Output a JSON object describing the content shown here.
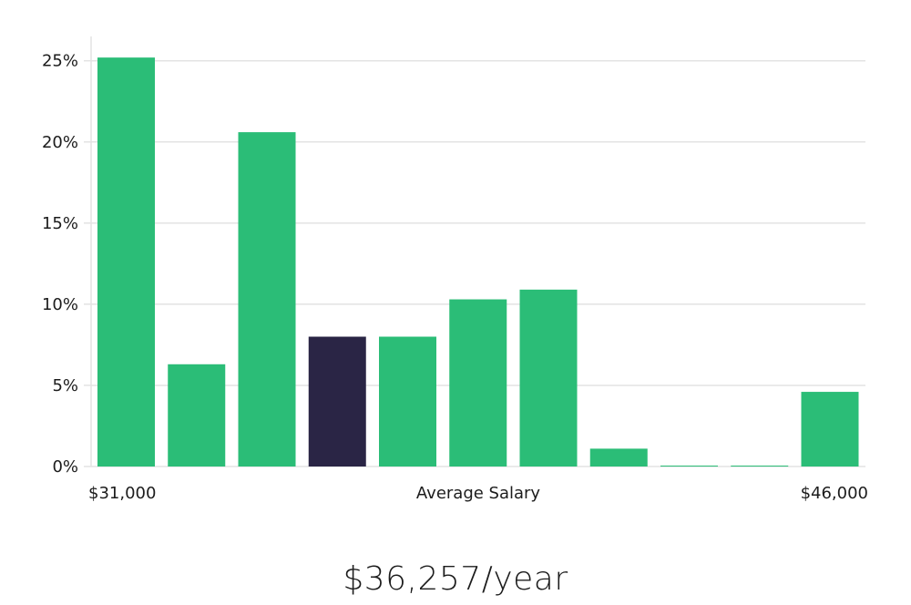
{
  "chart_data": {
    "type": "bar",
    "x_start_label": "$31,000",
    "x_end_label": "$46,000",
    "xlabel": "Average Salary",
    "ylim": [
      0,
      26.5
    ],
    "yticks": [
      0,
      5,
      10,
      15,
      20,
      25
    ],
    "ytick_labels": [
      "0%",
      "5%",
      "10%",
      "15%",
      "20%",
      "25%"
    ],
    "values": [
      25.2,
      6.3,
      20.6,
      8.0,
      8.0,
      10.3,
      10.9,
      1.1,
      0.05,
      0.05,
      4.6
    ],
    "highlight_index": 3,
    "colors": {
      "bar": "#2bbd77",
      "highlight": "#2a2545",
      "grid": "#e3e3e3"
    },
    "grid": true
  },
  "summary": {
    "salary_text": "$36,257/year"
  }
}
